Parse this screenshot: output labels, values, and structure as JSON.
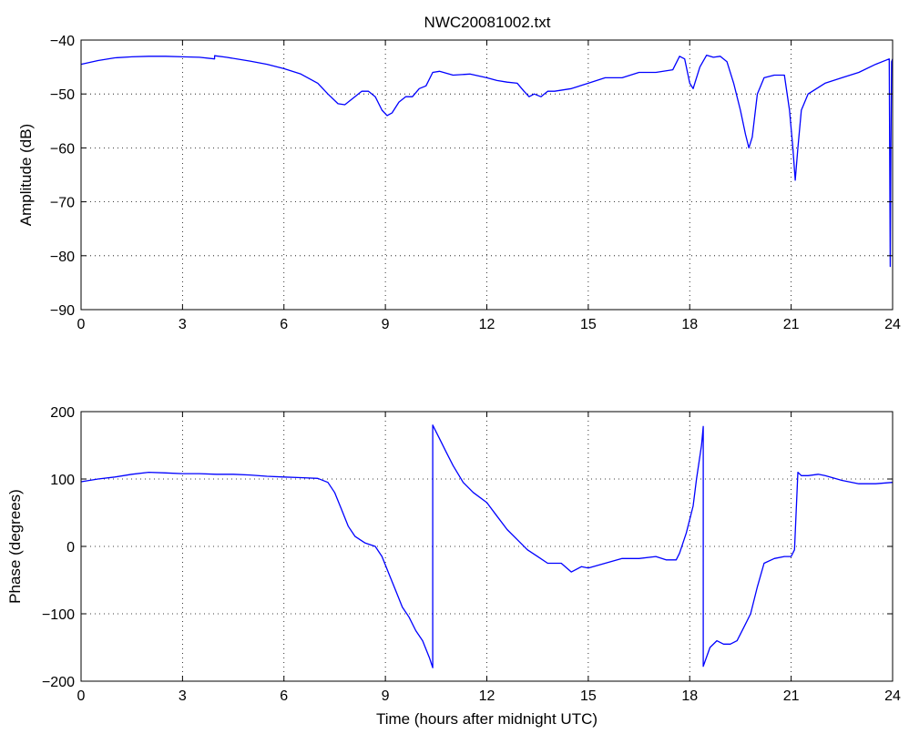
{
  "figure": {
    "title": "NWC20081002.txt",
    "line_color": "#0000ff"
  },
  "chart_data": [
    {
      "type": "line",
      "title": "NWC20081002.txt",
      "xlabel": "",
      "ylabel": "Amplitude (dB)",
      "xlim": [
        0,
        24
      ],
      "ylim": [
        -90,
        -40
      ],
      "xticks": [
        0,
        3,
        6,
        9,
        12,
        15,
        18,
        21,
        24
      ],
      "yticks": [
        -90,
        -80,
        -70,
        -60,
        -50,
        -40
      ],
      "grid": true,
      "color": "#0000ff",
      "series": [
        {
          "x": [
            0,
            0.5,
            1,
            1.5,
            2,
            2.5,
            3,
            3.5,
            3.95,
            3.95,
            4.3,
            5,
            5.5,
            6,
            6.5,
            7,
            7.3,
            7.6,
            7.8,
            8,
            8.3,
            8.5,
            8.7,
            8.9,
            9.05,
            9.2,
            9.4,
            9.6,
            9.8,
            10,
            10.2,
            10.4,
            10.6,
            11,
            11.5,
            12,
            12.3,
            12.6,
            12.9,
            13.1,
            13.25,
            13.4,
            13.6,
            13.8,
            14,
            14.5,
            15,
            15.5,
            16,
            16.5,
            17,
            17.5,
            17.7,
            17.85,
            18,
            18.1,
            18.3,
            18.5,
            18.7,
            18.9,
            19.1,
            19.3,
            19.5,
            19.65,
            19.75,
            19.85,
            20,
            20.2,
            20.5,
            20.8,
            20.95,
            21.05,
            21.12,
            21.2,
            21.3,
            21.5,
            22,
            22.5,
            23,
            23.5,
            23.9,
            23.93,
            23.95,
            23.97,
            24
          ],
          "y": [
            -44.5,
            -43.8,
            -43.3,
            -43.1,
            -43.0,
            -43.0,
            -43.1,
            -43.2,
            -43.5,
            -42.9,
            -43.2,
            -43.9,
            -44.5,
            -45.3,
            -46.3,
            -48.0,
            -50.0,
            -51.8,
            -52.0,
            -51.0,
            -49.5,
            -49.5,
            -50.5,
            -53.0,
            -54.0,
            -53.5,
            -51.5,
            -50.5,
            -50.5,
            -49.0,
            -48.5,
            -46.0,
            -45.8,
            -46.5,
            -46.3,
            -47.0,
            -47.5,
            -47.8,
            -48.0,
            -49.5,
            -50.5,
            -50.0,
            -50.5,
            -49.5,
            -49.5,
            -49.0,
            -48.0,
            -47.0,
            -47.0,
            -46.0,
            -46.0,
            -45.5,
            -43.0,
            -43.5,
            -48.0,
            -49.0,
            -45.0,
            -42.8,
            -43.2,
            -43.0,
            -44.0,
            -48.0,
            -53.0,
            -57.5,
            -60.0,
            -58.0,
            -50.0,
            -47.0,
            -46.5,
            -46.5,
            -53.0,
            -60.0,
            -66.0,
            -60.0,
            -53.0,
            -50.0,
            -48.0,
            -47.0,
            -46.0,
            -44.5,
            -43.5,
            -82.0,
            -60.0,
            -44.0,
            -43.5
          ]
        }
      ]
    },
    {
      "type": "line",
      "title": "",
      "xlabel": "Time (hours after midnight UTC)",
      "ylabel": "Phase (degrees)",
      "xlim": [
        0,
        24
      ],
      "ylim": [
        -200,
        200
      ],
      "xticks": [
        0,
        3,
        6,
        9,
        12,
        15,
        18,
        21,
        24
      ],
      "yticks": [
        -200,
        -100,
        0,
        100,
        200
      ],
      "grid": true,
      "color": "#0000ff",
      "series": [
        {
          "x": [
            0,
            0.5,
            1,
            1.5,
            2,
            2.5,
            3,
            3.5,
            4,
            4.5,
            5,
            5.5,
            6,
            6.5,
            7,
            7.3,
            7.5,
            7.7,
            7.9,
            8.1,
            8.4,
            8.7,
            8.9,
            9.1,
            9.3,
            9.5,
            9.7,
            9.9,
            10.1,
            10.3,
            10.4,
            10.4,
            10.6,
            10.8,
            11,
            11.3,
            11.6,
            12,
            12.3,
            12.6,
            12.9,
            13.2,
            13.5,
            13.8,
            14.2,
            14.5,
            14.8,
            15,
            15.5,
            16,
            16.5,
            17,
            17.3,
            17.6,
            17.7,
            17.9,
            18.1,
            18.2,
            18.35,
            18.4,
            18.4,
            18.6,
            18.8,
            19,
            19.2,
            19.4,
            19.6,
            19.8,
            20,
            20.2,
            20.5,
            20.8,
            21,
            21.1,
            21.2,
            21.3,
            21.5,
            21.8,
            22,
            22.5,
            23,
            23.5,
            24
          ],
          "y": [
            96,
            100,
            103,
            107,
            110,
            109,
            108,
            108,
            107,
            107,
            106,
            104,
            103,
            102,
            101,
            95,
            80,
            55,
            30,
            15,
            5,
            0,
            -15,
            -40,
            -65,
            -90,
            -105,
            -125,
            -140,
            -165,
            -180,
            180,
            160,
            140,
            120,
            95,
            80,
            65,
            45,
            25,
            10,
            -5,
            -15,
            -25,
            -25,
            -38,
            -30,
            -32,
            -25,
            -18,
            -18,
            -15,
            -20,
            -20,
            -10,
            20,
            60,
            100,
            150,
            178,
            -178,
            -150,
            -140,
            -145,
            -145,
            -140,
            -120,
            -100,
            -60,
            -25,
            -18,
            -15,
            -15,
            -5,
            110,
            105,
            105,
            107,
            105,
            98,
            93,
            93,
            95
          ]
        }
      ]
    }
  ]
}
